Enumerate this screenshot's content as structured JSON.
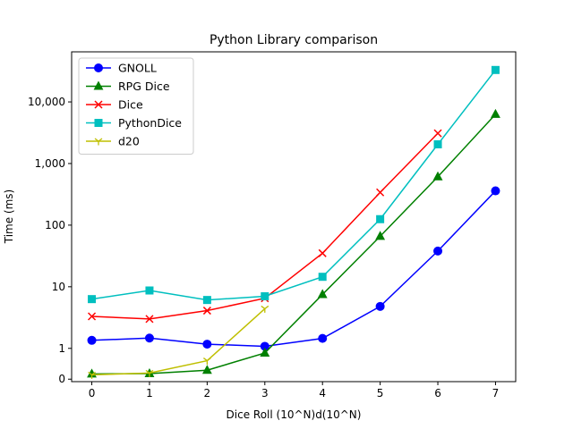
{
  "chart_data": {
    "type": "line",
    "title": "Python Library comparison",
    "xlabel": "Dice Roll (10^N)d(10^N)",
    "ylabel": "Time (ms)",
    "x_ticks": [
      0,
      1,
      2,
      3,
      4,
      5,
      6,
      7
    ],
    "x_tick_labels": [
      "0",
      "1",
      "2",
      "3",
      "4",
      "5",
      "6",
      "7"
    ],
    "xlim": [
      -0.35,
      7.35
    ],
    "y_scale": "symlog",
    "y_ticks": [
      0,
      1,
      10,
      100,
      1000,
      10000
    ],
    "y_tick_labels": [
      "0",
      "1",
      "10",
      "100",
      "1,000",
      "10,000"
    ],
    "ylim": [
      -0.08,
      65000
    ],
    "grid": false,
    "legend_position": "upper left",
    "series": [
      {
        "name": "GNOLL",
        "color": "#0000ff",
        "marker": "circle",
        "x": [
          0,
          1,
          2,
          3,
          4,
          5,
          6,
          7
        ],
        "values": [
          1.35,
          1.47,
          1.17,
          1.08,
          1.45,
          4.8,
          38,
          360
        ]
      },
      {
        "name": "RPG Dice",
        "color": "#008000",
        "marker": "triangle-up",
        "x": [
          0,
          1,
          2,
          3,
          4,
          5,
          6,
          7
        ],
        "values": [
          0.17,
          0.18,
          0.29,
          0.85,
          7.5,
          66,
          610,
          6300
        ]
      },
      {
        "name": "Dice",
        "color": "#ff0000",
        "marker": "x",
        "x": [
          0,
          1,
          2,
          3,
          4,
          5,
          6
        ],
        "values": [
          3.3,
          3.0,
          4.1,
          6.5,
          35,
          340,
          3100
        ]
      },
      {
        "name": "PythonDice",
        "color": "#00bfbf",
        "marker": "square",
        "x": [
          0,
          1,
          2,
          3,
          4,
          5,
          6,
          7
        ],
        "values": [
          6.3,
          8.7,
          6.1,
          7.0,
          14.5,
          125,
          2050,
          33000
        ]
      },
      {
        "name": "d20",
        "color": "#bfbf00",
        "marker": "tri-down",
        "x": [
          0,
          1,
          2,
          3
        ],
        "values": [
          0.14,
          0.2,
          0.6,
          4.4
        ]
      }
    ]
  }
}
